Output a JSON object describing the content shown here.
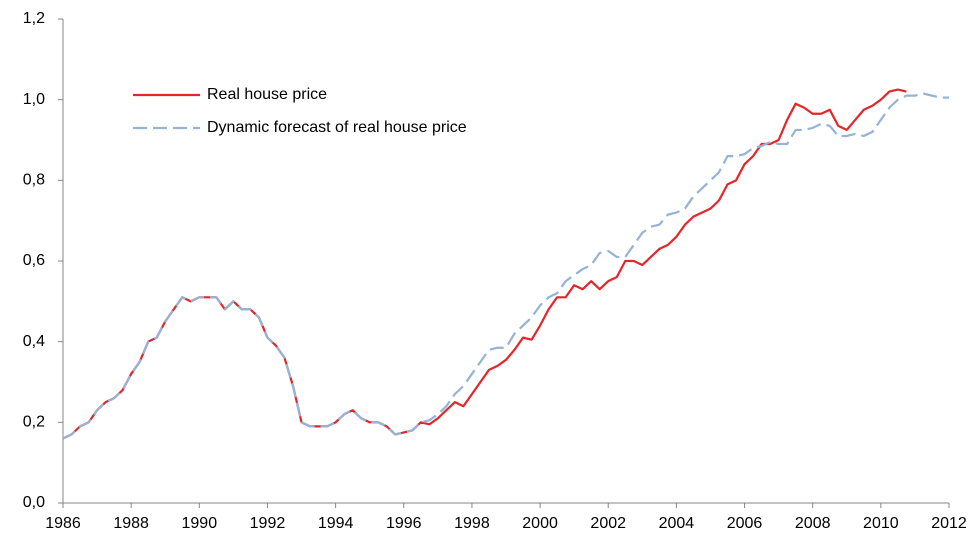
{
  "chart_data": {
    "type": "line",
    "x": [
      1986,
      1986.25,
      1986.5,
      1986.75,
      1987,
      1987.25,
      1987.5,
      1987.75,
      1988,
      1988.25,
      1988.5,
      1988.75,
      1989,
      1989.25,
      1989.5,
      1989.75,
      1990,
      1990.25,
      1990.5,
      1990.75,
      1991,
      1991.25,
      1991.5,
      1991.75,
      1992,
      1992.25,
      1992.5,
      1992.75,
      1993,
      1993.25,
      1993.5,
      1993.75,
      1994,
      1994.25,
      1994.5,
      1994.75,
      1995,
      1995.25,
      1995.5,
      1995.75,
      1996,
      1996.25,
      1996.5,
      1996.75,
      1997,
      1997.25,
      1997.5,
      1997.75,
      1998,
      1998.25,
      1998.5,
      1998.75,
      1999,
      1999.25,
      1999.5,
      1999.75,
      2000,
      2000.25,
      2000.5,
      2000.75,
      2001,
      2001.25,
      2001.5,
      2001.75,
      2002,
      2002.25,
      2002.5,
      2002.75,
      2003,
      2003.25,
      2003.5,
      2003.75,
      2004,
      2004.25,
      2004.5,
      2004.75,
      2005,
      2005.25,
      2005.5,
      2005.75,
      2006,
      2006.25,
      2006.5,
      2006.75,
      2007,
      2007.25,
      2007.5,
      2007.75,
      2008,
      2008.25,
      2008.5,
      2008.75,
      2009,
      2009.25,
      2009.5,
      2009.75,
      2010,
      2010.25,
      2010.5,
      2010.75,
      2011,
      2011.25,
      2011.5,
      2011.75,
      2012
    ],
    "series": [
      {
        "name": "Real house price",
        "color": "#e3262a",
        "dashed": false,
        "values": [
          0.16,
          0.17,
          0.19,
          0.2,
          0.23,
          0.25,
          0.26,
          0.28,
          0.32,
          0.35,
          0.4,
          0.41,
          0.45,
          0.48,
          0.51,
          0.5,
          0.51,
          0.51,
          0.51,
          0.48,
          0.5,
          0.48,
          0.48,
          0.46,
          0.41,
          0.39,
          0.36,
          0.29,
          0.2,
          0.19,
          0.19,
          0.19,
          0.2,
          0.22,
          0.23,
          0.21,
          0.2,
          0.2,
          0.19,
          0.17,
          0.175,
          0.18,
          0.2,
          0.195,
          0.21,
          0.23,
          0.25,
          0.24,
          0.27,
          0.3,
          0.33,
          0.34,
          0.355,
          0.38,
          0.41,
          0.405,
          0.44,
          0.48,
          0.51,
          0.51,
          0.54,
          0.53,
          0.55,
          0.53,
          0.55,
          0.56,
          0.6,
          0.6,
          0.59,
          0.61,
          0.63,
          0.64,
          0.66,
          0.69,
          0.71,
          0.72,
          0.73,
          0.75,
          0.79,
          0.8,
          0.84,
          0.86,
          0.89,
          0.89,
          0.9,
          0.95,
          0.99,
          0.98,
          0.965,
          0.965,
          0.975,
          0.935,
          0.925,
          0.95,
          0.975,
          0.985,
          1.0,
          1.02,
          1.025,
          1.02,
          null,
          null,
          null,
          null,
          null
        ]
      },
      {
        "name": "Dynamic forecast of real house price",
        "color": "#95b3d7",
        "dashed": true,
        "values": [
          0.16,
          0.17,
          0.19,
          0.2,
          0.23,
          0.25,
          0.26,
          0.28,
          0.32,
          0.35,
          0.4,
          0.41,
          0.45,
          0.48,
          0.51,
          0.5,
          0.51,
          0.51,
          0.51,
          0.48,
          0.5,
          0.48,
          0.48,
          0.46,
          0.41,
          0.39,
          0.36,
          0.29,
          0.2,
          0.19,
          0.19,
          0.19,
          0.2,
          0.22,
          0.23,
          0.21,
          0.2,
          0.2,
          0.19,
          0.17,
          0.175,
          0.18,
          0.2,
          0.205,
          0.22,
          0.24,
          0.27,
          0.29,
          0.32,
          0.35,
          0.38,
          0.385,
          0.385,
          0.42,
          0.44,
          0.46,
          0.49,
          0.51,
          0.52,
          0.55,
          0.565,
          0.58,
          0.59,
          0.62,
          0.625,
          0.61,
          0.61,
          0.64,
          0.67,
          0.685,
          0.69,
          0.715,
          0.72,
          0.73,
          0.76,
          0.78,
          0.8,
          0.82,
          0.86,
          0.86,
          0.865,
          0.88,
          0.885,
          0.895,
          0.89,
          0.89,
          0.925,
          0.925,
          0.93,
          0.94,
          0.935,
          0.91,
          0.91,
          0.915,
          0.91,
          0.92,
          0.95,
          0.98,
          1.0,
          1.01,
          1.01,
          1.015,
          1.01,
          1.005,
          1.005
        ]
      }
    ],
    "xlim": [
      1986,
      2012
    ],
    "xticks": [
      1986,
      1988,
      1990,
      1992,
      1994,
      1996,
      1998,
      2000,
      2002,
      2004,
      2006,
      2008,
      2010,
      2012
    ],
    "ylim": [
      0,
      1.2
    ],
    "yticks": [
      {
        "value": 0,
        "label": "0,0"
      },
      {
        "value": 0.2,
        "label": "0,2"
      },
      {
        "value": 0.4,
        "label": "0,4"
      },
      {
        "value": 0.6,
        "label": "0,6"
      },
      {
        "value": 0.8,
        "label": "0,8"
      },
      {
        "value": 1.0,
        "label": "1,0"
      },
      {
        "value": 1.2,
        "label": "1,2"
      }
    ],
    "grid": false,
    "legend": "upper-left"
  }
}
